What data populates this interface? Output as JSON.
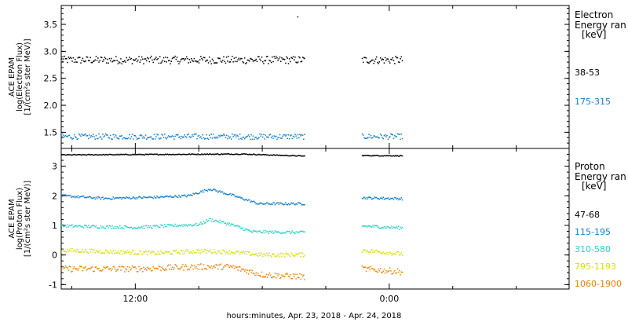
{
  "chart_data": [
    {
      "type": "scatter",
      "ylabel": [
        "ACE EPAM",
        "log(Electron Flux)",
        "[1/(cm²s ster MeV)]"
      ],
      "ylim": [
        1.2,
        3.85
      ],
      "yticks": [
        1.5,
        2.0,
        2.5,
        3.0,
        3.5
      ],
      "ytick_labels": [
        "1.5",
        "2.0",
        "2.5",
        "3.0",
        "3.5"
      ],
      "xlim": [
        -15.5,
        8.5
      ],
      "legend": {
        "title_lines": [
          "Electron",
          "Energy ran",
          "[keV]"
        ],
        "placement": "right"
      },
      "series": [
        {
          "name": "38-53",
          "color": "#000000",
          "mean": 2.85,
          "spread": 0.07,
          "segments": [
            [
              -15.5,
              -4.0
            ],
            [
              -1.3,
              0.6
            ]
          ],
          "outliers": [
            {
              "x": -4.35,
              "y": 3.65
            }
          ]
        },
        {
          "name": "175-315",
          "color": "#1080d0",
          "mean": 1.43,
          "spread": 0.05,
          "segments": [
            [
              -15.5,
              -4.0
            ],
            [
              -1.3,
              0.6
            ]
          ]
        }
      ]
    },
    {
      "type": "scatter",
      "ylabel": [
        "ACE EPAM",
        "log(Proton Flux)",
        "[1/(cm²s ster MeV)]"
      ],
      "ylim": [
        -1.15,
        3.6
      ],
      "yticks": [
        -1,
        0,
        1,
        2,
        3
      ],
      "ytick_labels": [
        "-1",
        "0",
        "1",
        "2",
        "3"
      ],
      "xlim": [
        -15.5,
        8.5
      ],
      "legend": {
        "title_lines": [
          "Proton",
          "Energy ran",
          "[keV]"
        ],
        "placement": "right"
      },
      "series": [
        {
          "name": "47-68",
          "color": "#000000",
          "spread": 0.015,
          "segments": [
            [
              -15.5,
              -4.0
            ],
            [
              -1.3,
              0.6
            ]
          ],
          "trend": [
            [
              -15.5,
              3.4
            ],
            [
              -7.0,
              3.43
            ],
            [
              -4.0,
              3.36
            ],
            [
              -1.3,
              3.38
            ],
            [
              0.6,
              3.37
            ]
          ]
        },
        {
          "name": "115-195",
          "color": "#1080d0",
          "spread": 0.04,
          "segments": [
            [
              -15.5,
              -4.0
            ],
            [
              -1.3,
              0.6
            ]
          ],
          "trend": [
            [
              -15.5,
              2.02
            ],
            [
              -13.5,
              1.93
            ],
            [
              -11.0,
              1.97
            ],
            [
              -9.5,
              2.02
            ],
            [
              -8.5,
              2.25
            ],
            [
              -7.5,
              2.05
            ],
            [
              -6.2,
              1.75
            ],
            [
              -4.0,
              1.75
            ],
            [
              -1.3,
              1.95
            ],
            [
              0.6,
              1.92
            ]
          ]
        },
        {
          "name": "310-580",
          "color": "#20d8c8",
          "spread": 0.05,
          "segments": [
            [
              -15.5,
              -4.0
            ],
            [
              -1.3,
              0.6
            ]
          ],
          "trend": [
            [
              -15.5,
              1.0
            ],
            [
              -12.0,
              0.95
            ],
            [
              -9.0,
              1.05
            ],
            [
              -8.5,
              1.22
            ],
            [
              -7.5,
              1.05
            ],
            [
              -6.5,
              0.8
            ],
            [
              -4.0,
              0.78
            ],
            [
              -1.3,
              1.0
            ],
            [
              0.6,
              0.93
            ]
          ]
        },
        {
          "name": "795-1193",
          "color": "#d8e000",
          "spread": 0.07,
          "segments": [
            [
              -15.5,
              -4.0
            ],
            [
              -1.3,
              0.6
            ]
          ],
          "trend": [
            [
              -15.5,
              0.18
            ],
            [
              -11.0,
              0.08
            ],
            [
              -9.0,
              0.15
            ],
            [
              -7.5,
              0.12
            ],
            [
              -6.0,
              0.02
            ],
            [
              -4.0,
              0.03
            ],
            [
              -1.3,
              0.18
            ],
            [
              0.6,
              0.05
            ]
          ]
        },
        {
          "name": "1060-1900",
          "color": "#f08000",
          "spread": 0.1,
          "segments": [
            [
              -15.5,
              -4.0
            ],
            [
              -1.3,
              0.6
            ]
          ],
          "trend": [
            [
              -15.5,
              -0.45
            ],
            [
              -12.0,
              -0.45
            ],
            [
              -9.0,
              -0.38
            ],
            [
              -7.5,
              -0.38
            ],
            [
              -6.0,
              -0.65
            ],
            [
              -4.0,
              -0.72
            ],
            [
              -1.3,
              -0.45
            ],
            [
              0.6,
              -0.55
            ]
          ]
        }
      ]
    }
  ],
  "x_axis": {
    "ticks": [
      0,
      12,
      24
    ],
    "tick_hours": [
      -12,
      0
    ],
    "tick_labels": [
      "12:00",
      "0:00"
    ],
    "minor_tick_hours": [
      -15,
      -9,
      -6,
      -3,
      3,
      6
    ],
    "xlabel": "hours:minutes, Apr. 23, 2018 - Apr. 24, 2018"
  }
}
